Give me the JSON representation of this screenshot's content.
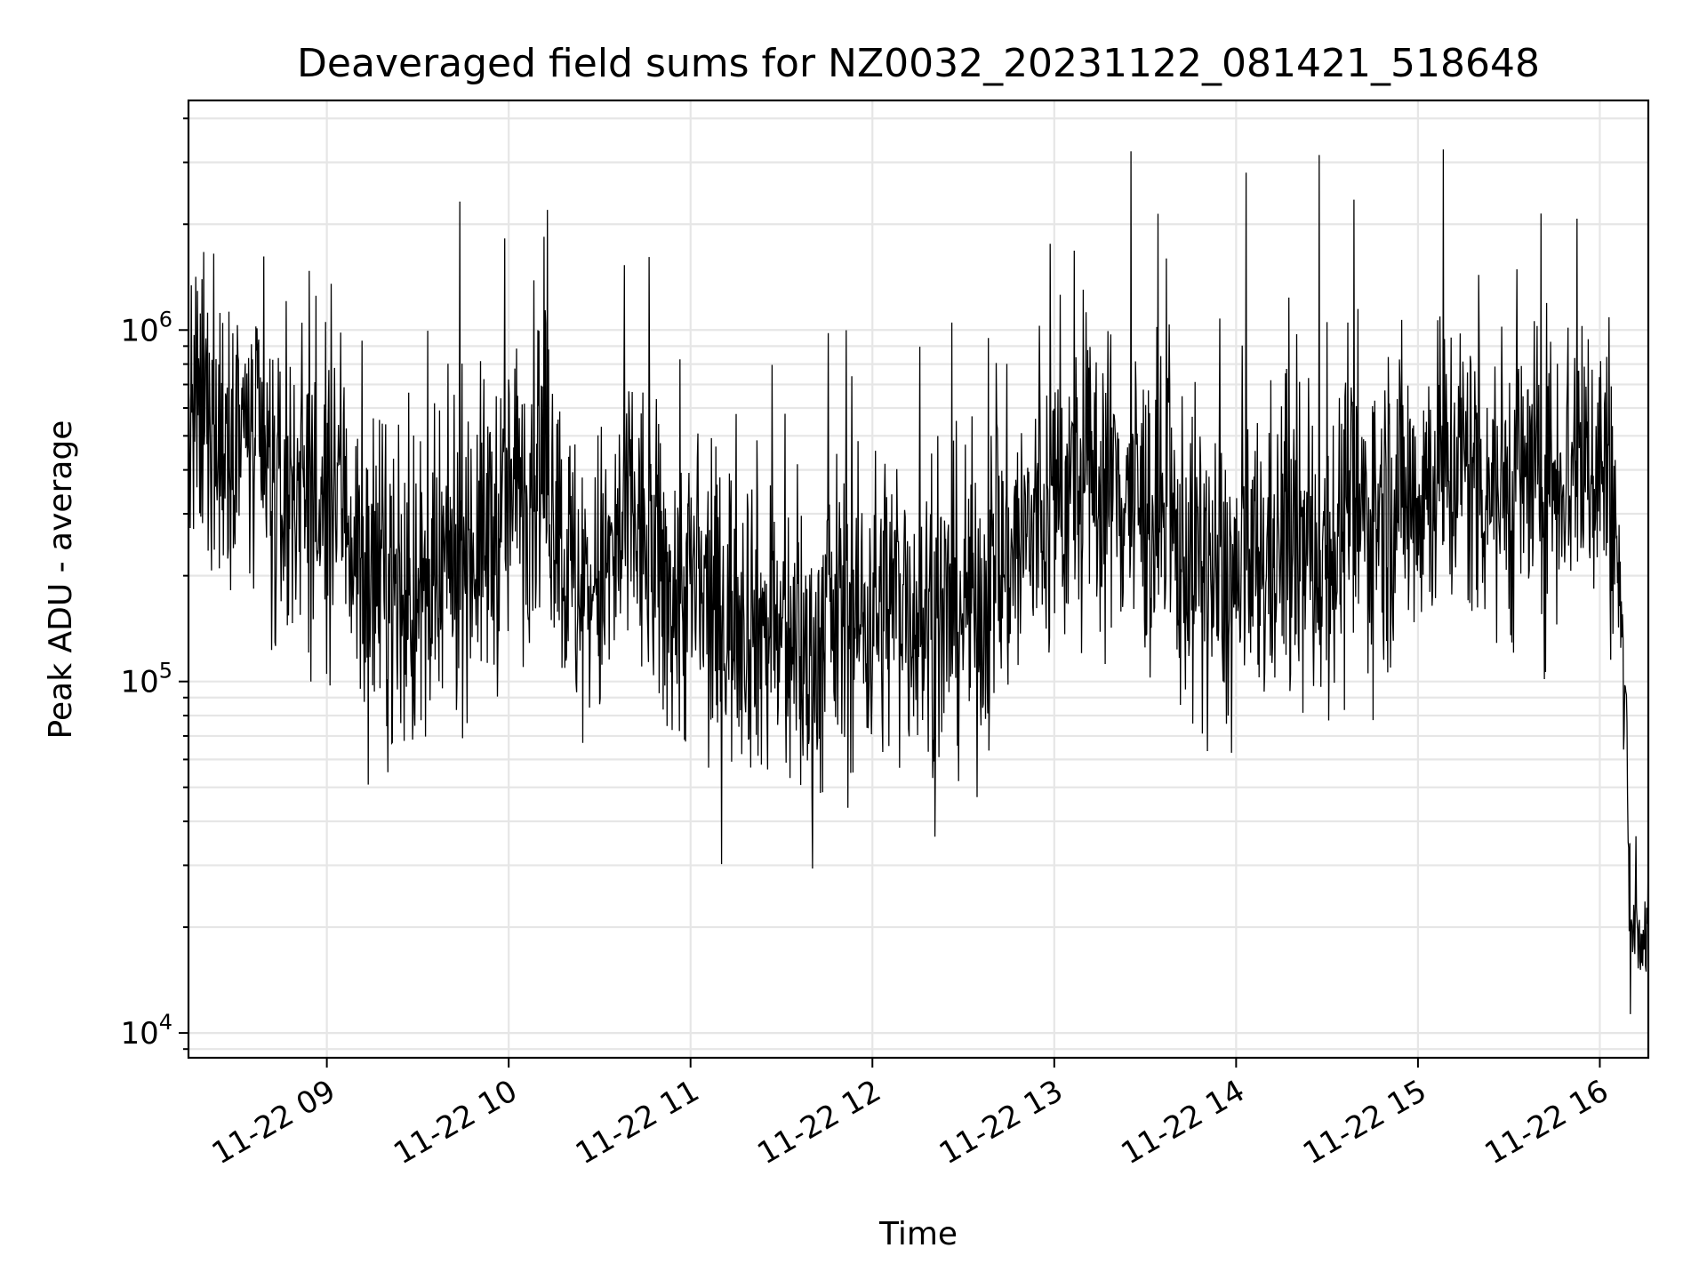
{
  "chart_data": {
    "type": "line",
    "title": "Deaveraged field sums for NZ0032_20231122_081421_518648",
    "xlabel": "Time",
    "ylabel": "Peak ADU - average",
    "yscale": "log",
    "ylim": [
      8500,
      4500000
    ],
    "xlim": [
      "2023-11-22 08:14:21",
      "2023-11-22 16:16:00"
    ],
    "grid": true,
    "legend": "none",
    "line_color": "#000000",
    "x_ticks": [
      {
        "value": "2023-11-22 09:00",
        "label": "11-22 09"
      },
      {
        "value": "2023-11-22 10:00",
        "label": "11-22 10"
      },
      {
        "value": "2023-11-22 11:00",
        "label": "11-22 11"
      },
      {
        "value": "2023-11-22 12:00",
        "label": "11-22 12"
      },
      {
        "value": "2023-11-22 13:00",
        "label": "11-22 13"
      },
      {
        "value": "2023-11-22 14:00",
        "label": "11-22 14"
      },
      {
        "value": "2023-11-22 15:00",
        "label": "11-22 15"
      },
      {
        "value": "2023-11-22 16:00",
        "label": "11-22 16"
      }
    ],
    "y_ticks": [
      {
        "value": 10000,
        "base": "10",
        "exp": "4"
      },
      {
        "value": 100000,
        "base": "10",
        "exp": "5"
      },
      {
        "value": 1000000,
        "base": "10",
        "exp": "6"
      }
    ],
    "series": [
      {
        "x": [
          "2023-11-22 08:14",
          "2023-11-22 08:20",
          "2023-11-22 08:25",
          "2023-11-22 08:30",
          "2023-11-22 08:35",
          "2023-11-22 08:40",
          "2023-11-22 08:45",
          "2023-11-22 08:50",
          "2023-11-22 08:55",
          "2023-11-22 09:00",
          "2023-11-22 09:05",
          "2023-11-22 09:10",
          "2023-11-22 09:15",
          "2023-11-22 09:20",
          "2023-11-22 09:25",
          "2023-11-22 09:30",
          "2023-11-22 09:35",
          "2023-11-22 09:40",
          "2023-11-22 09:45",
          "2023-11-22 09:50",
          "2023-11-22 09:55",
          "2023-11-22 10:00",
          "2023-11-22 10:05",
          "2023-11-22 10:10",
          "2023-11-22 10:15",
          "2023-11-22 10:20",
          "2023-11-22 10:25",
          "2023-11-22 10:30",
          "2023-11-22 10:35",
          "2023-11-22 10:40",
          "2023-11-22 10:45",
          "2023-11-22 10:50",
          "2023-11-22 10:55",
          "2023-11-22 11:00",
          "2023-11-22 11:05",
          "2023-11-22 11:10",
          "2023-11-22 11:15",
          "2023-11-22 11:20",
          "2023-11-22 11:25",
          "2023-11-22 11:30",
          "2023-11-22 11:35",
          "2023-11-22 11:40",
          "2023-11-22 11:45",
          "2023-11-22 11:50",
          "2023-11-22 11:55",
          "2023-11-22 12:00",
          "2023-11-22 12:05",
          "2023-11-22 12:10",
          "2023-11-22 12:15",
          "2023-11-22 12:20",
          "2023-11-22 12:25",
          "2023-11-22 12:30",
          "2023-11-22 12:35",
          "2023-11-22 12:40",
          "2023-11-22 12:45",
          "2023-11-22 12:50",
          "2023-11-22 12:55",
          "2023-11-22 13:00",
          "2023-11-22 13:05",
          "2023-11-22 13:10",
          "2023-11-22 13:15",
          "2023-11-22 13:20",
          "2023-11-22 13:25",
          "2023-11-22 13:30",
          "2023-11-22 13:35",
          "2023-11-22 13:40",
          "2023-11-22 13:45",
          "2023-11-22 13:50",
          "2023-11-22 13:55",
          "2023-11-22 14:00",
          "2023-11-22 14:05",
          "2023-11-22 14:10",
          "2023-11-22 14:15",
          "2023-11-22 14:20",
          "2023-11-22 14:25",
          "2023-11-22 14:30",
          "2023-11-22 14:35",
          "2023-11-22 14:40",
          "2023-11-22 14:45",
          "2023-11-22 14:50",
          "2023-11-22 14:55",
          "2023-11-22 15:00",
          "2023-11-22 15:05",
          "2023-11-22 15:10",
          "2023-11-22 15:15",
          "2023-11-22 15:20",
          "2023-11-22 15:25",
          "2023-11-22 15:30",
          "2023-11-22 15:35",
          "2023-11-22 15:40",
          "2023-11-22 15:45",
          "2023-11-22 15:50",
          "2023-11-22 15:55",
          "2023-11-22 16:00",
          "2023-11-22 16:03",
          "2023-11-22 16:06",
          "2023-11-22 16:08",
          "2023-11-22 16:10",
          "2023-11-22 16:12",
          "2023-11-22 16:14",
          "2023-11-22 16:16"
        ],
        "y": [
          500000,
          550000,
          480000,
          620000,
          450000,
          380000,
          300000,
          400000,
          350000,
          250000,
          380000,
          220000,
          180000,
          200000,
          160000,
          170000,
          150000,
          210000,
          260000,
          250000,
          270000,
          320000,
          380000,
          420000,
          350000,
          200000,
          180000,
          190000,
          220000,
          300000,
          240000,
          200000,
          170000,
          190000,
          160000,
          150000,
          170000,
          160000,
          140000,
          130000,
          120000,
          110000,
          140000,
          160000,
          150000,
          160000,
          170000,
          180000,
          160000,
          140000,
          150000,
          170000,
          160000,
          200000,
          230000,
          250000,
          280000,
          320000,
          340000,
          360000,
          380000,
          360000,
          340000,
          300000,
          280000,
          240000,
          230000,
          200000,
          190000,
          180000,
          200000,
          220000,
          250000,
          230000,
          220000,
          240000,
          260000,
          280000,
          300000,
          320000,
          340000,
          350000,
          380000,
          400000,
          420000,
          390000,
          360000,
          350000,
          380000,
          360000,
          400000,
          420000,
          430000,
          420000,
          400000,
          200000,
          100000,
          20000,
          22000,
          18000,
          21000
        ]
      }
    ]
  }
}
